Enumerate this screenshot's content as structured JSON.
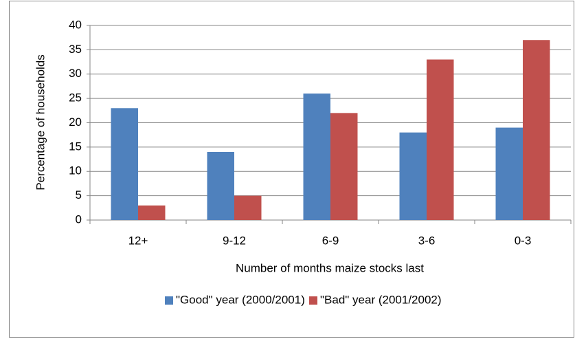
{
  "chart_data": {
    "type": "bar",
    "x_label": "Number of months maize stocks last",
    "y_label": "Percentage of households",
    "categories": [
      "12+",
      "9-12",
      "6-9",
      "3-6",
      "0-3"
    ],
    "series": [
      {
        "name": "\"Good\" year (2000/2001)",
        "color": "#4f81bd",
        "values": [
          23,
          14,
          26,
          18,
          19
        ]
      },
      {
        "name": "\"Bad\" year (2001/2002)",
        "color": "#c0504d",
        "values": [
          3,
          5,
          22,
          33,
          37
        ]
      }
    ],
    "ylim": [
      0,
      40
    ],
    "yticks": [
      0,
      5,
      10,
      15,
      20,
      25,
      30,
      35,
      40
    ],
    "grid": true,
    "legend": "bottom"
  }
}
